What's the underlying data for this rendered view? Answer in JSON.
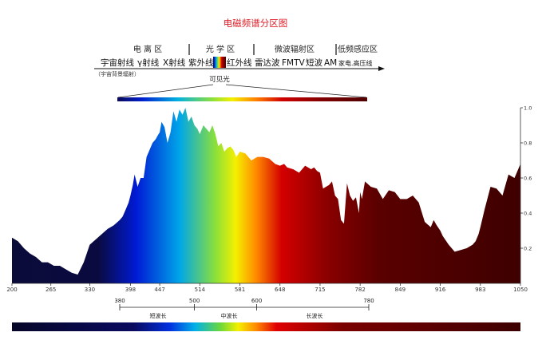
{
  "title": "电磁频谱分区图",
  "zones": [
    {
      "key": "ionizing",
      "label": "电 离 区"
    },
    {
      "key": "optical",
      "label": "光 学 区"
    },
    {
      "key": "microwave",
      "label": "微波辐射区"
    },
    {
      "key": "lowfreq",
      "label": "低频感应区"
    }
  ],
  "bands": [
    {
      "key": "cosmic",
      "label": "宇宙射线"
    },
    {
      "key": "gamma",
      "label": "γ射线"
    },
    {
      "key": "xray",
      "label": "X射线"
    },
    {
      "key": "uv",
      "label": "紫外线"
    },
    {
      "key": "ir",
      "label": "红外线"
    },
    {
      "key": "radar",
      "label": "雷达波"
    },
    {
      "key": "fmtv",
      "label": "FMTV"
    },
    {
      "key": "shortwave",
      "label": "短波"
    },
    {
      "key": "am",
      "label": "AM"
    },
    {
      "key": "power",
      "label": "家电.高压线"
    }
  ],
  "cosmic_background_label": "（宇宙背景辐射）",
  "visible_label": "可见光",
  "chart_data": {
    "type": "area",
    "x_ticks": [
      200,
      265,
      330,
      398,
      447,
      514,
      581,
      648,
      715,
      782,
      849,
      916,
      983,
      1050
    ],
    "y_ticks": [
      0.2,
      0.4,
      0.6,
      0.8,
      1.0
    ],
    "xlim": [
      200,
      1050
    ],
    "ylim": [
      0,
      1.0
    ],
    "x": [
      200,
      210,
      220,
      230,
      240,
      250,
      260,
      265,
      270,
      280,
      290,
      300,
      310,
      320,
      330,
      340,
      350,
      360,
      370,
      380,
      385,
      390,
      395,
      398,
      402,
      405,
      410,
      415,
      420,
      425,
      430,
      435,
      440,
      445,
      447,
      450,
      455,
      460,
      465,
      470,
      475,
      480,
      485,
      490,
      495,
      500,
      505,
      510,
      514,
      520,
      525,
      530,
      535,
      540,
      545,
      550,
      555,
      560,
      565,
      570,
      575,
      581,
      590,
      600,
      610,
      620,
      630,
      640,
      648,
      655,
      660,
      670,
      680,
      690,
      700,
      705,
      710,
      715,
      720,
      730,
      735,
      740,
      745,
      750,
      755,
      760,
      765,
      770,
      775,
      780,
      782,
      785,
      790,
      800,
      810,
      820,
      830,
      840,
      849,
      855,
      860,
      870,
      880,
      890,
      900,
      905,
      910,
      916,
      920,
      930,
      940,
      950,
      960,
      970,
      975,
      980,
      983,
      990,
      1000,
      1010,
      1020,
      1030,
      1040,
      1050
    ],
    "values": [
      0.26,
      0.24,
      0.2,
      0.17,
      0.15,
      0.12,
      0.12,
      0.11,
      0.1,
      0.1,
      0.08,
      0.06,
      0.05,
      0.12,
      0.22,
      0.25,
      0.28,
      0.31,
      0.33,
      0.36,
      0.38,
      0.42,
      0.46,
      0.5,
      0.56,
      0.62,
      0.55,
      0.6,
      0.6,
      0.72,
      0.76,
      0.8,
      0.82,
      0.85,
      0.86,
      0.92,
      0.89,
      0.8,
      0.86,
      0.98,
      0.92,
      0.99,
      0.96,
      1.0,
      0.92,
      0.95,
      0.9,
      0.88,
      0.85,
      0.9,
      0.88,
      0.86,
      0.9,
      0.85,
      0.78,
      0.8,
      0.75,
      0.77,
      0.78,
      0.76,
      0.72,
      0.75,
      0.74,
      0.7,
      0.72,
      0.72,
      0.71,
      0.68,
      0.67,
      0.68,
      0.66,
      0.65,
      0.63,
      0.67,
      0.65,
      0.66,
      0.64,
      0.63,
      0.54,
      0.56,
      0.58,
      0.5,
      0.48,
      0.36,
      0.34,
      0.57,
      0.5,
      0.47,
      0.49,
      0.4,
      0.52,
      0.48,
      0.58,
      0.55,
      0.54,
      0.48,
      0.53,
      0.52,
      0.48,
      0.48,
      0.48,
      0.5,
      0.46,
      0.35,
      0.32,
      0.36,
      0.33,
      0.3,
      0.27,
      0.22,
      0.18,
      0.19,
      0.2,
      0.22,
      0.24,
      0.28,
      0.32,
      0.42,
      0.55,
      0.54,
      0.5,
      0.62,
      0.6,
      0.68
    ]
  },
  "lower_axis": {
    "ticks": [
      380,
      500,
      600,
      780
    ],
    "ranges": [
      {
        "key": "short",
        "label": "短波长"
      },
      {
        "key": "medium",
        "label": "中波长"
      },
      {
        "key": "long",
        "label": "长波长"
      }
    ]
  },
  "colors": {
    "title": "#e0202a",
    "violet": "#0b0b3a",
    "blue": "#001bd6",
    "cyan": "#00a6e8",
    "green": "#7ad43a",
    "yellow": "#f4f000",
    "orange": "#ff8a00",
    "red": "#d40000",
    "darkred": "#5a0000",
    "deepred": "#3e0000"
  }
}
